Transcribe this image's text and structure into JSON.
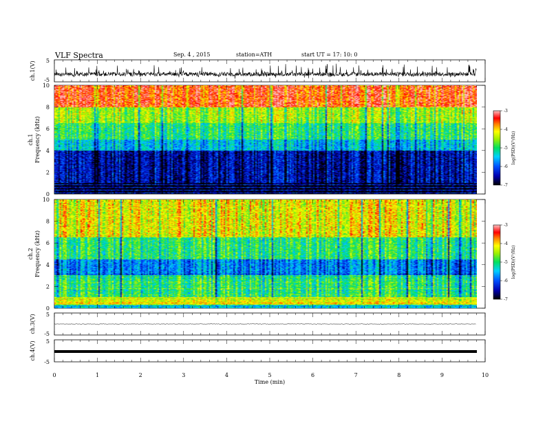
{
  "header": {
    "title": "VLF  Spectra",
    "date": "Sep. 4  , 2015",
    "station": "station=ATH",
    "start": "start  UT  =    17: 10: 0"
  },
  "chart_data": [
    {
      "type": "line",
      "panel": "ch1-waveform",
      "ylabel": "ch.1(V)",
      "ylim": [
        -5,
        5
      ],
      "yticks": [
        "5",
        "-5"
      ],
      "xlim": [
        0,
        10
      ],
      "description_values": {
        "baseline_v": -1.5,
        "noise_spikes": true
      }
    },
    {
      "type": "heatmap",
      "panel": "ch1-spectrogram",
      "ylabel": "ch.1\nFrequency (kHz)",
      "ylabel_line1": "ch.1",
      "ylabel_line2": "Frequency  (kHz)",
      "ylim": [
        0,
        10
      ],
      "yticks": [
        "0",
        "2",
        "4",
        "6",
        "8",
        "10"
      ],
      "xlim": [
        0,
        10
      ],
      "data_end_min": 9.8,
      "colorbar": {
        "label": "log(PSD)(V²/Hz)",
        "range": [
          -7,
          -3
        ],
        "ticks": [
          "-3",
          "-4",
          "-5",
          "-6",
          "-7"
        ]
      },
      "bands_kHz": [
        {
          "from": 0,
          "to": 1,
          "level": -7
        },
        {
          "from": 1,
          "to": 4,
          "level": -6.5
        },
        {
          "from": 4,
          "to": 5,
          "level": -5.5
        },
        {
          "from": 5,
          "to": 6.5,
          "level": -5
        },
        {
          "from": 6.5,
          "to": 8,
          "level": -4.5
        },
        {
          "from": 8,
          "to": 10,
          "level": -3.5
        }
      ]
    },
    {
      "type": "heatmap",
      "panel": "ch2-spectrogram",
      "ylabel_line1": "ch.2",
      "ylabel_line2": "Frequency  (kHz)",
      "ylim": [
        0,
        10
      ],
      "yticks": [
        "0",
        "2",
        "4",
        "6",
        "8",
        "10"
      ],
      "xlim": [
        0,
        10
      ],
      "data_end_min": 9.8,
      "colorbar": {
        "label": "log(PSD)(V²/Hz)",
        "range": [
          -7,
          -3
        ],
        "ticks": [
          "-3",
          "-4",
          "-5",
          "-6",
          "-7"
        ]
      },
      "bands_kHz": [
        {
          "from": 0,
          "to": 0.3,
          "level": -5.5
        },
        {
          "from": 0.3,
          "to": 1,
          "level": -4.2
        },
        {
          "from": 1,
          "to": 3,
          "level": -5
        },
        {
          "from": 3,
          "to": 4.5,
          "level": -5.8
        },
        {
          "from": 4.5,
          "to": 6.5,
          "level": -5
        },
        {
          "from": 6.5,
          "to": 10,
          "level": -4.2
        }
      ]
    },
    {
      "type": "line",
      "panel": "ch3-waveform",
      "ylabel": "ch.3(V)",
      "ylim": [
        -5,
        5
      ],
      "yticks": [
        "5",
        "-5"
      ],
      "xlim": [
        0,
        10
      ],
      "description_values": {
        "baseline_v": 0
      }
    },
    {
      "type": "line",
      "panel": "ch4-waveform",
      "ylabel": "ch.4(V)",
      "ylim": [
        -5,
        5
      ],
      "yticks": [
        "5",
        "-5"
      ],
      "xlim": [
        0,
        10
      ],
      "xlabel": "Time  (min)",
      "xticks": [
        "0",
        "1",
        "2",
        "3",
        "4",
        "5",
        "6",
        "7",
        "8",
        "9",
        "10"
      ],
      "description_values": {
        "baseline_v": 0
      }
    }
  ],
  "colors": {
    "palette": [
      "#000000",
      "#0000c0",
      "#0040ff",
      "#00c8ff",
      "#00e070",
      "#80f000",
      "#ffff00",
      "#ff9000",
      "#ff0000",
      "#ff9090",
      "#ffffff"
    ]
  }
}
